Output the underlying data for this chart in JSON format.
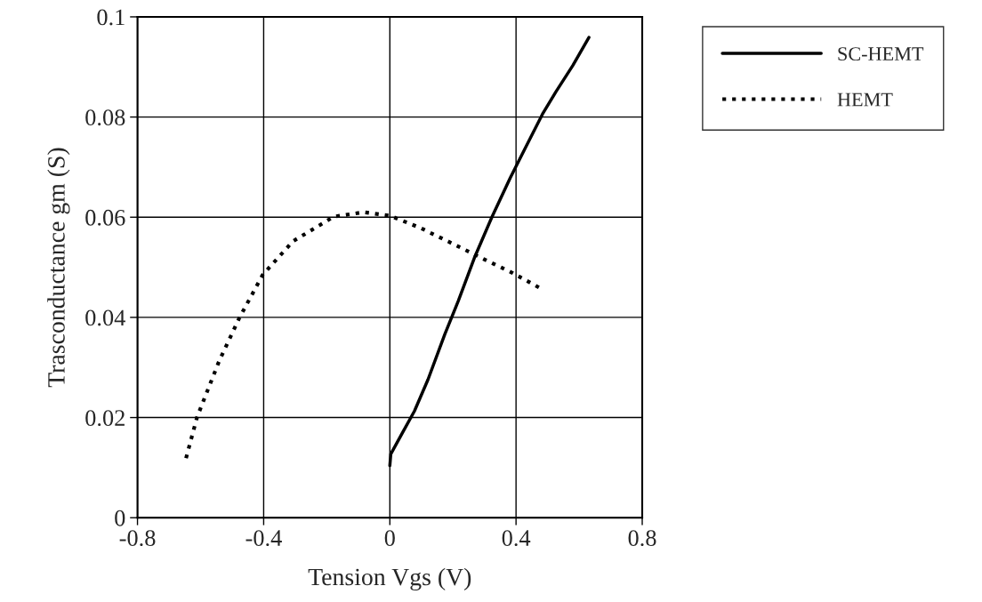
{
  "chart_data": {
    "type": "line",
    "xlabel": "Tension Vgs (V)",
    "ylabel": "Trasconductance gm (S)",
    "xlim": [
      -0.8,
      0.8
    ],
    "xticks": [
      -0.8,
      -0.4,
      0,
      0.4,
      0.8
    ],
    "ylim": [
      0,
      0.1
    ],
    "yticks": [
      0,
      0.02,
      0.04,
      0.06,
      0.08,
      0.1
    ],
    "grid": true,
    "legend": "top right",
    "marker": "none",
    "series": [
      {
        "name": "SC-HEMT",
        "color": "#000000",
        "line_style": "solid",
        "x": [
          0,
          0.003,
          0.035,
          0.078,
          0.121,
          0.174,
          0.217,
          0.27,
          0.324,
          0.382,
          0.43,
          0.484,
          0.527,
          0.58,
          0.631
        ],
        "values": [
          0.0104,
          0.0127,
          0.0164,
          0.0213,
          0.0276,
          0.0366,
          0.0433,
          0.0522,
          0.0601,
          0.0679,
          0.0739,
          0.0806,
          0.0851,
          0.0903,
          0.0959
        ]
      },
      {
        "name": "HEMT",
        "color": "#000000",
        "line_style": "dotted",
        "x": [
          -0.646,
          -0.611,
          -0.541,
          -0.477,
          -0.403,
          -0.307,
          -0.178,
          -0.082,
          0,
          0.099,
          0.206,
          0.302,
          0.388,
          0.489
        ],
        "values": [
          0.0119,
          0.0201,
          0.0313,
          0.0399,
          0.0485,
          0.0552,
          0.0601,
          0.061,
          0.0603,
          0.0578,
          0.0545,
          0.0515,
          0.0489,
          0.0454
        ]
      }
    ]
  }
}
